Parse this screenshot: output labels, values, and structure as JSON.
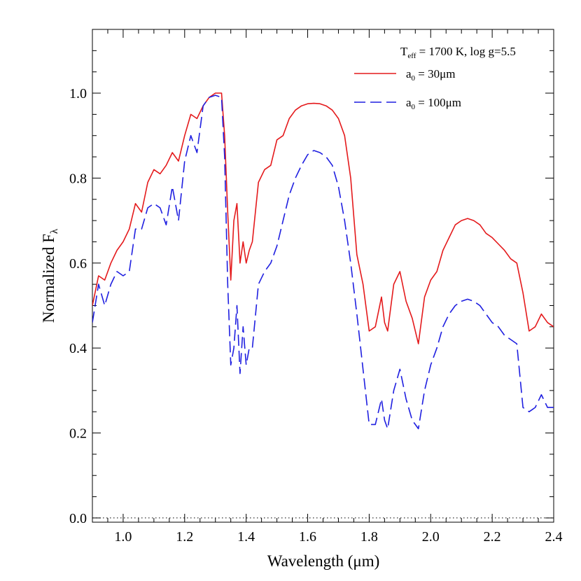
{
  "chart_data": {
    "type": "line",
    "xlabel": "Wavelength (μm)",
    "ylabel": "Normalized F",
    "ylabel_sub": "λ",
    "xlim": [
      0.9,
      2.4
    ],
    "ylim": [
      -0.01,
      1.15
    ],
    "x_ticks": [
      1.0,
      1.2,
      1.4,
      1.6,
      1.8,
      2.0,
      2.2,
      2.4
    ],
    "x_tick_labels": [
      "1.0",
      "1.2",
      "1.4",
      "1.6",
      "1.8",
      "2.0",
      "2.2",
      "2.4"
    ],
    "y_ticks": [
      0.0,
      0.2,
      0.4,
      0.6,
      0.8,
      1.0
    ],
    "y_tick_labels": [
      "0.0",
      "0.2",
      "0.4",
      "0.6",
      "0.8",
      "1.0"
    ],
    "grid": false,
    "annotation": {
      "t_symbol": "T",
      "t_sub": "eff",
      "t_rest": " = 1700 K, log g=5.5"
    },
    "reference_line": {
      "y": 0.0,
      "style": "dotted"
    },
    "legend_position": "top-right",
    "series": [
      {
        "label_main": "a",
        "label_sub": "0",
        "label_rest": " = 30μm",
        "color": "#e41a1c",
        "dash": "solid",
        "x": [
          0.9,
          0.92,
          0.94,
          0.96,
          0.98,
          1.0,
          1.02,
          1.04,
          1.06,
          1.08,
          1.1,
          1.12,
          1.14,
          1.16,
          1.18,
          1.2,
          1.22,
          1.24,
          1.26,
          1.28,
          1.3,
          1.32,
          1.33,
          1.34,
          1.35,
          1.36,
          1.37,
          1.38,
          1.39,
          1.4,
          1.41,
          1.42,
          1.44,
          1.46,
          1.48,
          1.5,
          1.52,
          1.54,
          1.56,
          1.58,
          1.6,
          1.62,
          1.64,
          1.66,
          1.68,
          1.7,
          1.72,
          1.74,
          1.76,
          1.78,
          1.8,
          1.82,
          1.84,
          1.85,
          1.86,
          1.88,
          1.9,
          1.92,
          1.94,
          1.96,
          1.98,
          2.0,
          2.02,
          2.04,
          2.06,
          2.08,
          2.1,
          2.12,
          2.14,
          2.16,
          2.18,
          2.2,
          2.22,
          2.24,
          2.26,
          2.28,
          2.3,
          2.32,
          2.34,
          2.36,
          2.38,
          2.4
        ],
        "y": [
          0.5,
          0.57,
          0.56,
          0.6,
          0.63,
          0.65,
          0.68,
          0.74,
          0.72,
          0.79,
          0.82,
          0.81,
          0.83,
          0.86,
          0.84,
          0.9,
          0.95,
          0.94,
          0.97,
          0.99,
          1.0,
          1.0,
          0.9,
          0.72,
          0.56,
          0.7,
          0.74,
          0.6,
          0.65,
          0.6,
          0.63,
          0.65,
          0.79,
          0.82,
          0.83,
          0.89,
          0.9,
          0.94,
          0.96,
          0.97,
          0.975,
          0.976,
          0.975,
          0.97,
          0.96,
          0.94,
          0.9,
          0.8,
          0.62,
          0.55,
          0.44,
          0.45,
          0.52,
          0.46,
          0.44,
          0.55,
          0.58,
          0.51,
          0.47,
          0.41,
          0.52,
          0.56,
          0.58,
          0.63,
          0.66,
          0.69,
          0.7,
          0.705,
          0.7,
          0.69,
          0.67,
          0.66,
          0.645,
          0.63,
          0.61,
          0.6,
          0.53,
          0.44,
          0.45,
          0.48,
          0.46,
          0.45
        ]
      },
      {
        "label_main": "a",
        "label_sub": "0",
        "label_rest": " = 100μm",
        "color": "#1f1fe0",
        "dash": "long-dash",
        "x": [
          0.9,
          0.92,
          0.94,
          0.96,
          0.98,
          1.0,
          1.02,
          1.04,
          1.06,
          1.08,
          1.1,
          1.12,
          1.14,
          1.16,
          1.18,
          1.2,
          1.22,
          1.24,
          1.26,
          1.28,
          1.3,
          1.32,
          1.33,
          1.34,
          1.35,
          1.36,
          1.37,
          1.38,
          1.39,
          1.4,
          1.41,
          1.42,
          1.44,
          1.46,
          1.48,
          1.5,
          1.52,
          1.54,
          1.56,
          1.58,
          1.6,
          1.62,
          1.64,
          1.66,
          1.68,
          1.7,
          1.72,
          1.74,
          1.76,
          1.78,
          1.8,
          1.82,
          1.84,
          1.85,
          1.86,
          1.88,
          1.9,
          1.92,
          1.94,
          1.96,
          1.98,
          2.0,
          2.02,
          2.04,
          2.06,
          2.08,
          2.1,
          2.12,
          2.14,
          2.16,
          2.18,
          2.2,
          2.22,
          2.24,
          2.26,
          2.28,
          2.3,
          2.32,
          2.34,
          2.36,
          2.38,
          2.4
        ],
        "y": [
          0.46,
          0.55,
          0.5,
          0.55,
          0.58,
          0.57,
          0.58,
          0.68,
          0.68,
          0.73,
          0.74,
          0.73,
          0.69,
          0.78,
          0.7,
          0.84,
          0.9,
          0.86,
          0.97,
          0.99,
          0.995,
          0.99,
          0.85,
          0.55,
          0.36,
          0.4,
          0.5,
          0.34,
          0.45,
          0.36,
          0.4,
          0.4,
          0.55,
          0.58,
          0.6,
          0.64,
          0.7,
          0.76,
          0.8,
          0.83,
          0.855,
          0.865,
          0.86,
          0.85,
          0.83,
          0.78,
          0.7,
          0.6,
          0.48,
          0.35,
          0.22,
          0.22,
          0.28,
          0.23,
          0.21,
          0.3,
          0.35,
          0.28,
          0.23,
          0.21,
          0.3,
          0.36,
          0.4,
          0.45,
          0.48,
          0.5,
          0.51,
          0.515,
          0.51,
          0.5,
          0.48,
          0.46,
          0.45,
          0.43,
          0.42,
          0.41,
          0.26,
          0.25,
          0.26,
          0.29,
          0.26,
          0.26
        ]
      }
    ]
  }
}
